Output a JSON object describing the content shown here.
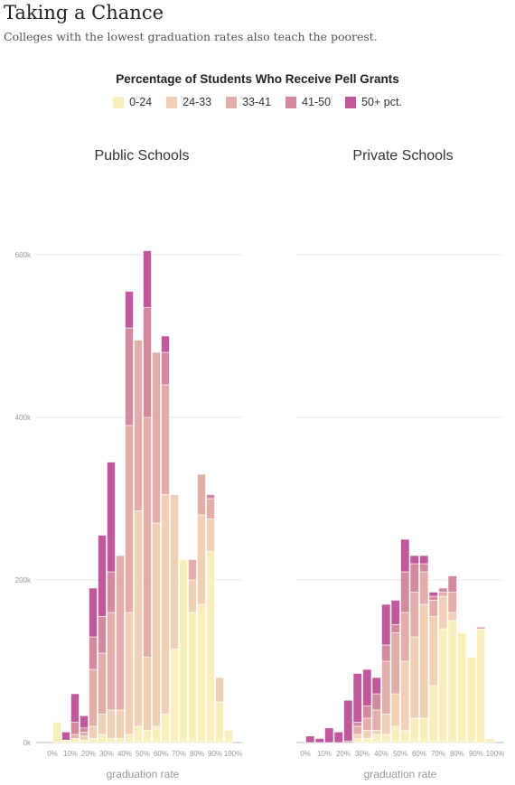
{
  "title": "Taking a Chance",
  "subtitle": "Colleges with the lowest graduation rates also teach the poorest.",
  "legend": {
    "title": "Percentage of Students Who Receive Pell Grants",
    "items": [
      {
        "label": "0-24",
        "color": "#f9efbd"
      },
      {
        "label": "24-33",
        "color": "#f0d1b7"
      },
      {
        "label": "33-41",
        "color": "#e3aeaa"
      },
      {
        "label": "41-50",
        "color": "#d38a9f"
      },
      {
        "label": "50+ pct.",
        "color": "#c0589b"
      }
    ]
  },
  "chart_data": [
    {
      "type": "bar",
      "stacked": true,
      "title": "Public Schools",
      "xlabel": "graduation rate",
      "ylabel": "",
      "ylim": [
        0,
        700000
      ],
      "yticks": [
        0,
        200000,
        400000,
        600000
      ],
      "ytick_labels": [
        "0k",
        "200k",
        "400k",
        "600k"
      ],
      "x_range": [
        0,
        100
      ],
      "bin_width": 5,
      "xtick_labels": [
        "0%",
        "10%",
        "20%",
        "30%",
        "40%",
        "50%",
        "60%",
        "70%",
        "80%",
        "90%",
        "100%"
      ],
      "categories": [
        "0-5%",
        "5-10%",
        "10-15%",
        "15-20%",
        "20-25%",
        "25-30%",
        "30-35%",
        "35-40%",
        "40-45%",
        "45-50%",
        "50-55%",
        "55-60%",
        "60-65%",
        "65-70%",
        "70-75%",
        "75-80%",
        "80-85%",
        "85-90%",
        "90-95%",
        "95-100%"
      ],
      "series": [
        {
          "name": "0-24",
          "values": [
            25000,
            3000,
            5000,
            3000,
            5000,
            10000,
            5000,
            5000,
            10000,
            20000,
            15000,
            20000,
            35000,
            115000,
            225000,
            160000,
            170000,
            235000,
            50000,
            15000
          ]
        },
        {
          "name": "24-33",
          "values": [
            0,
            0,
            0,
            5000,
            15000,
            25000,
            35000,
            35000,
            150000,
            265000,
            90000,
            250000,
            270000,
            190000,
            0,
            40000,
            110000,
            40000,
            30000,
            0
          ]
        },
        {
          "name": "33-41",
          "values": [
            0,
            0,
            5000,
            5000,
            70000,
            75000,
            120000,
            190000,
            230000,
            210000,
            295000,
            210000,
            135000,
            0,
            0,
            25000,
            50000,
            25000,
            0,
            0
          ]
        },
        {
          "name": "41-50",
          "values": [
            0,
            0,
            15000,
            5000,
            40000,
            45000,
            50000,
            0,
            120000,
            0,
            135000,
            0,
            40000,
            0,
            0,
            0,
            0,
            5000,
            0,
            0
          ]
        },
        {
          "name": "50+ pct.",
          "values": [
            0,
            10000,
            35000,
            15000,
            60000,
            100000,
            135000,
            0,
            45000,
            0,
            70000,
            0,
            20000,
            0,
            0,
            0,
            0,
            0,
            0,
            0
          ]
        }
      ]
    },
    {
      "type": "bar",
      "stacked": true,
      "title": "Private Schools",
      "xlabel": "graduation rate",
      "ylabel": "",
      "ylim": [
        0,
        700000
      ],
      "yticks": [
        0,
        200000,
        400000,
        600000
      ],
      "x_range": [
        0,
        100
      ],
      "bin_width": 5,
      "xtick_labels": [
        "0%",
        "10%",
        "20%",
        "30%",
        "40%",
        "50%",
        "60%",
        "70%",
        "80%",
        "90%",
        "100%"
      ],
      "categories": [
        "0-5%",
        "5-10%",
        "10-15%",
        "15-20%",
        "20-25%",
        "25-30%",
        "30-35%",
        "35-40%",
        "40-45%",
        "45-50%",
        "50-55%",
        "55-60%",
        "60-65%",
        "65-70%",
        "70-75%",
        "75-80%",
        "80-85%",
        "85-90%",
        "90-95%",
        "95-100%"
      ],
      "series": [
        {
          "name": "0-24",
          "values": [
            0,
            0,
            0,
            0,
            0,
            5000,
            5000,
            10000,
            10000,
            20000,
            15000,
            30000,
            30000,
            70000,
            140000,
            150000,
            135000,
            105000,
            140000,
            5000
          ]
        },
        {
          "name": "24-33",
          "values": [
            0,
            0,
            0,
            0,
            0,
            5000,
            10000,
            5000,
            25000,
            40000,
            85000,
            100000,
            140000,
            85000,
            40000,
            10000,
            0,
            0,
            0,
            0
          ]
        },
        {
          "name": "33-41",
          "values": [
            0,
            0,
            0,
            0,
            0,
            10000,
            15000,
            25000,
            65000,
            75000,
            60000,
            55000,
            40000,
            20000,
            5000,
            25000,
            0,
            0,
            0,
            0
          ]
        },
        {
          "name": "41-50",
          "values": [
            0,
            0,
            0,
            0,
            2000,
            5000,
            15000,
            20000,
            20000,
            10000,
            50000,
            35000,
            10000,
            5000,
            5000,
            20000,
            0,
            0,
            2000,
            0
          ]
        },
        {
          "name": "50+ pct.",
          "values": [
            8000,
            5000,
            18000,
            13000,
            50000,
            60000,
            45000,
            20000,
            50000,
            30000,
            40000,
            10000,
            10000,
            5000,
            0,
            0,
            0,
            0,
            0,
            0
          ]
        }
      ]
    }
  ]
}
